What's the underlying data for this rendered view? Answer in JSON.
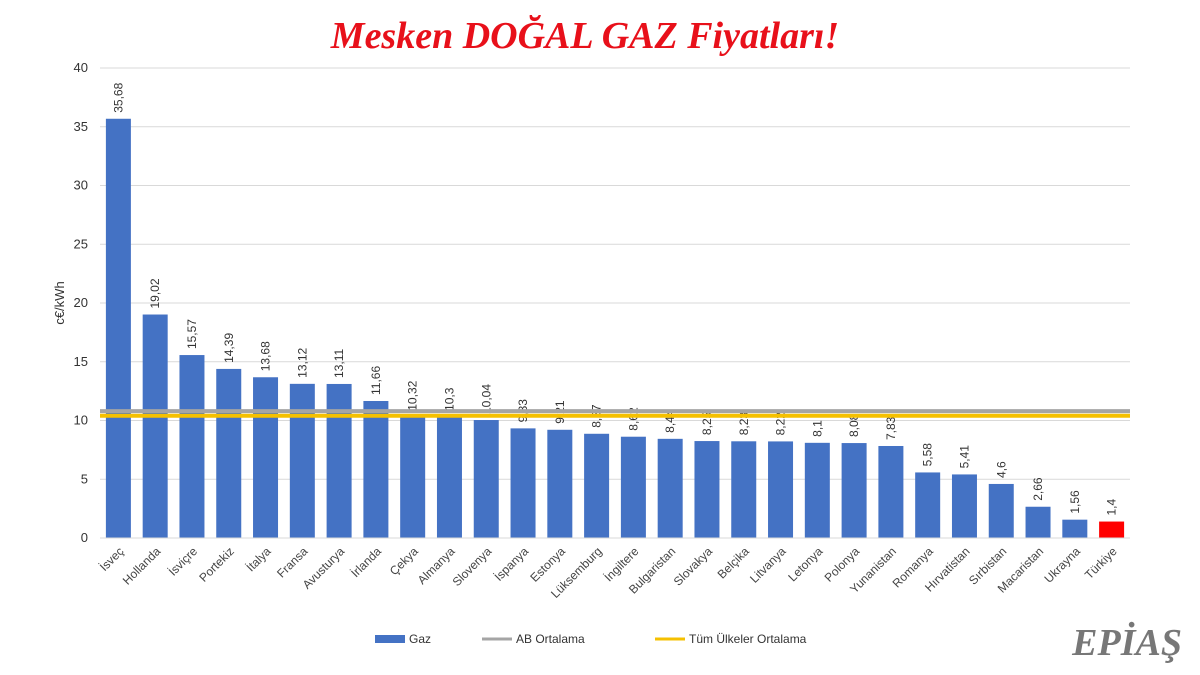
{
  "chart_data": {
    "type": "bar",
    "title": "Mesken DOĞAL GAZ Fiyatları!",
    "ylabel": "c€/kWh",
    "xlabel": "",
    "ylim": [
      0,
      40
    ],
    "yticks": [
      0,
      5,
      10,
      15,
      20,
      25,
      30,
      35,
      40
    ],
    "grid": true,
    "legend_position": "bottom",
    "categories": [
      "İsveç",
      "Hollanda",
      "İsviçre",
      "Portekiz",
      "İtalya",
      "Fransa",
      "Avusturya",
      "İrlanda",
      "Çekya",
      "Almanya",
      "Slovenya",
      "İspanya",
      "Estonya",
      "Lüksemburg",
      "İngiltere",
      "Bulgaristan",
      "Slovakya",
      "Belçika",
      "Litvanya",
      "Letonya",
      "Polonya",
      "Yunanistan",
      "Romanya",
      "Hırvatistan",
      "Sırbistan",
      "Macaristan",
      "Ukrayna",
      "Türkiye"
    ],
    "values": [
      35.68,
      19.02,
      15.57,
      14.39,
      13.68,
      13.12,
      13.11,
      11.66,
      10.32,
      10.3,
      10.04,
      9.33,
      9.21,
      8.87,
      8.62,
      8.44,
      8.25,
      8.23,
      8.22,
      8.1,
      8.08,
      7.83,
      5.58,
      5.41,
      4.6,
      2.66,
      1.56,
      1.4
    ],
    "data_labels": [
      "35,68",
      "19,02",
      "15,57",
      "14,39",
      "13,68",
      "13,12",
      "13,11",
      "11,66",
      "10,32",
      "10,3",
      "10,04",
      "9,33",
      "9,21",
      "8,87",
      "8,62",
      "8,44",
      "8,25",
      "8,23",
      "8,22",
      "8,1",
      "8,08",
      "7,83",
      "5,58",
      "5,41",
      "4,6",
      "2,66",
      "1,56",
      "1,4"
    ],
    "highlight_category": "Türkiye",
    "series": [
      {
        "name": "Gaz",
        "color": "#4472c4"
      },
      {
        "name": "AB Ortalama",
        "color": "#a5a5a5",
        "value": 10.8
      },
      {
        "name": "Tüm Ülkeler Ortalama",
        "color": "#f5c000",
        "value": 10.4
      }
    ],
    "highlight_color": "#ff0000"
  },
  "logo": "EPİAŞ"
}
